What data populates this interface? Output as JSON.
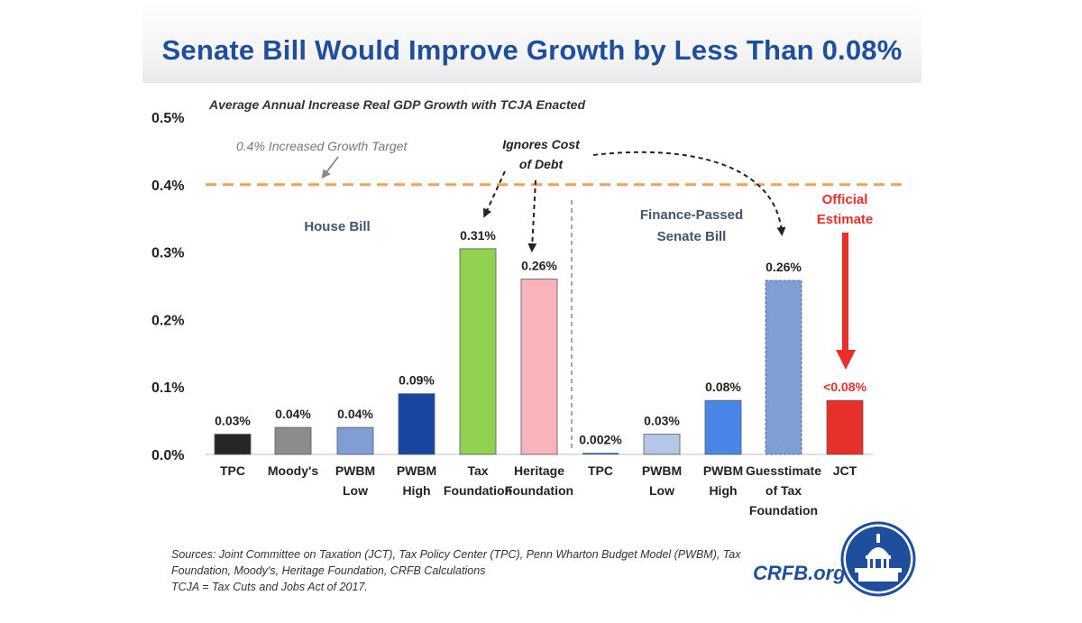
{
  "title": "Senate Bill Would Improve Growth by Less Than 0.08%",
  "colors": {
    "title": "#1f4e9c",
    "target_line": "#f0a05a",
    "official": "#e8302a",
    "group_label": "#44546a"
  },
  "chart_data": {
    "type": "bar",
    "subtitle": "Average Annual Increase Real GDP Growth with TCJA Enacted",
    "ylim": [
      0,
      0.5
    ],
    "yticks": [
      "0.0%",
      "0.1%",
      "0.2%",
      "0.3%",
      "0.4%",
      "0.5%"
    ],
    "ytick_values": [
      0,
      0.1,
      0.2,
      0.3,
      0.4,
      0.5
    ],
    "grid": false,
    "categories": [
      [
        "TPC"
      ],
      [
        "Moody's"
      ],
      [
        "PWBM",
        "Low"
      ],
      [
        "PWBM",
        "High"
      ],
      [
        "Tax",
        "Foundation"
      ],
      [
        "Heritage",
        "Foundation"
      ],
      [
        "TPC"
      ],
      [
        "PWBM",
        "Low"
      ],
      [
        "PWBM",
        "High"
      ],
      [
        "Guesstimate",
        "of Tax",
        "Foundation"
      ],
      [
        "JCT"
      ]
    ],
    "values": [
      0.03,
      0.04,
      0.04,
      0.09,
      0.305,
      0.26,
      0.002,
      0.03,
      0.08,
      0.258,
      0.08
    ],
    "data_labels": [
      "0.03%",
      "0.04%",
      "0.04%",
      "0.09%",
      "0.31%",
      "0.26%",
      "0.002%",
      "0.03%",
      "0.08%",
      "0.26%",
      "<0.08%"
    ],
    "bar_colors": [
      "#262626",
      "#8c8c8c",
      "#7f9ed3",
      "#1846a0",
      "#92d050",
      "#f8b3bb",
      "#1846a0",
      "#b4c7e7",
      "#4a86e8",
      "#7f9ed3",
      "#e8302a"
    ],
    "groups": [
      {
        "label": [
          "House Bill"
        ],
        "bars": [
          0,
          5
        ]
      },
      {
        "label": [
          "Finance-Passed",
          "Senate Bill"
        ],
        "bars": [
          6,
          10
        ]
      }
    ],
    "reference_line": {
      "value": 0.4,
      "label": "0.4% Increased Growth Target"
    },
    "annotations": {
      "ignores_cost": [
        "Ignores Cost",
        "of Debt"
      ],
      "official_estimate": [
        "Official",
        "Estimate"
      ]
    }
  },
  "sources": [
    "Sources: Joint Committee on Taxation (JCT), Tax Policy Center (TPC), Penn Wharton Budget Model (PWBM), Tax",
    "Foundation, Moody's, Heritage Foundation, CRFB Calculations",
    "TCJA = Tax Cuts and Jobs Act of 2017."
  ],
  "brand": "CRFB.org"
}
